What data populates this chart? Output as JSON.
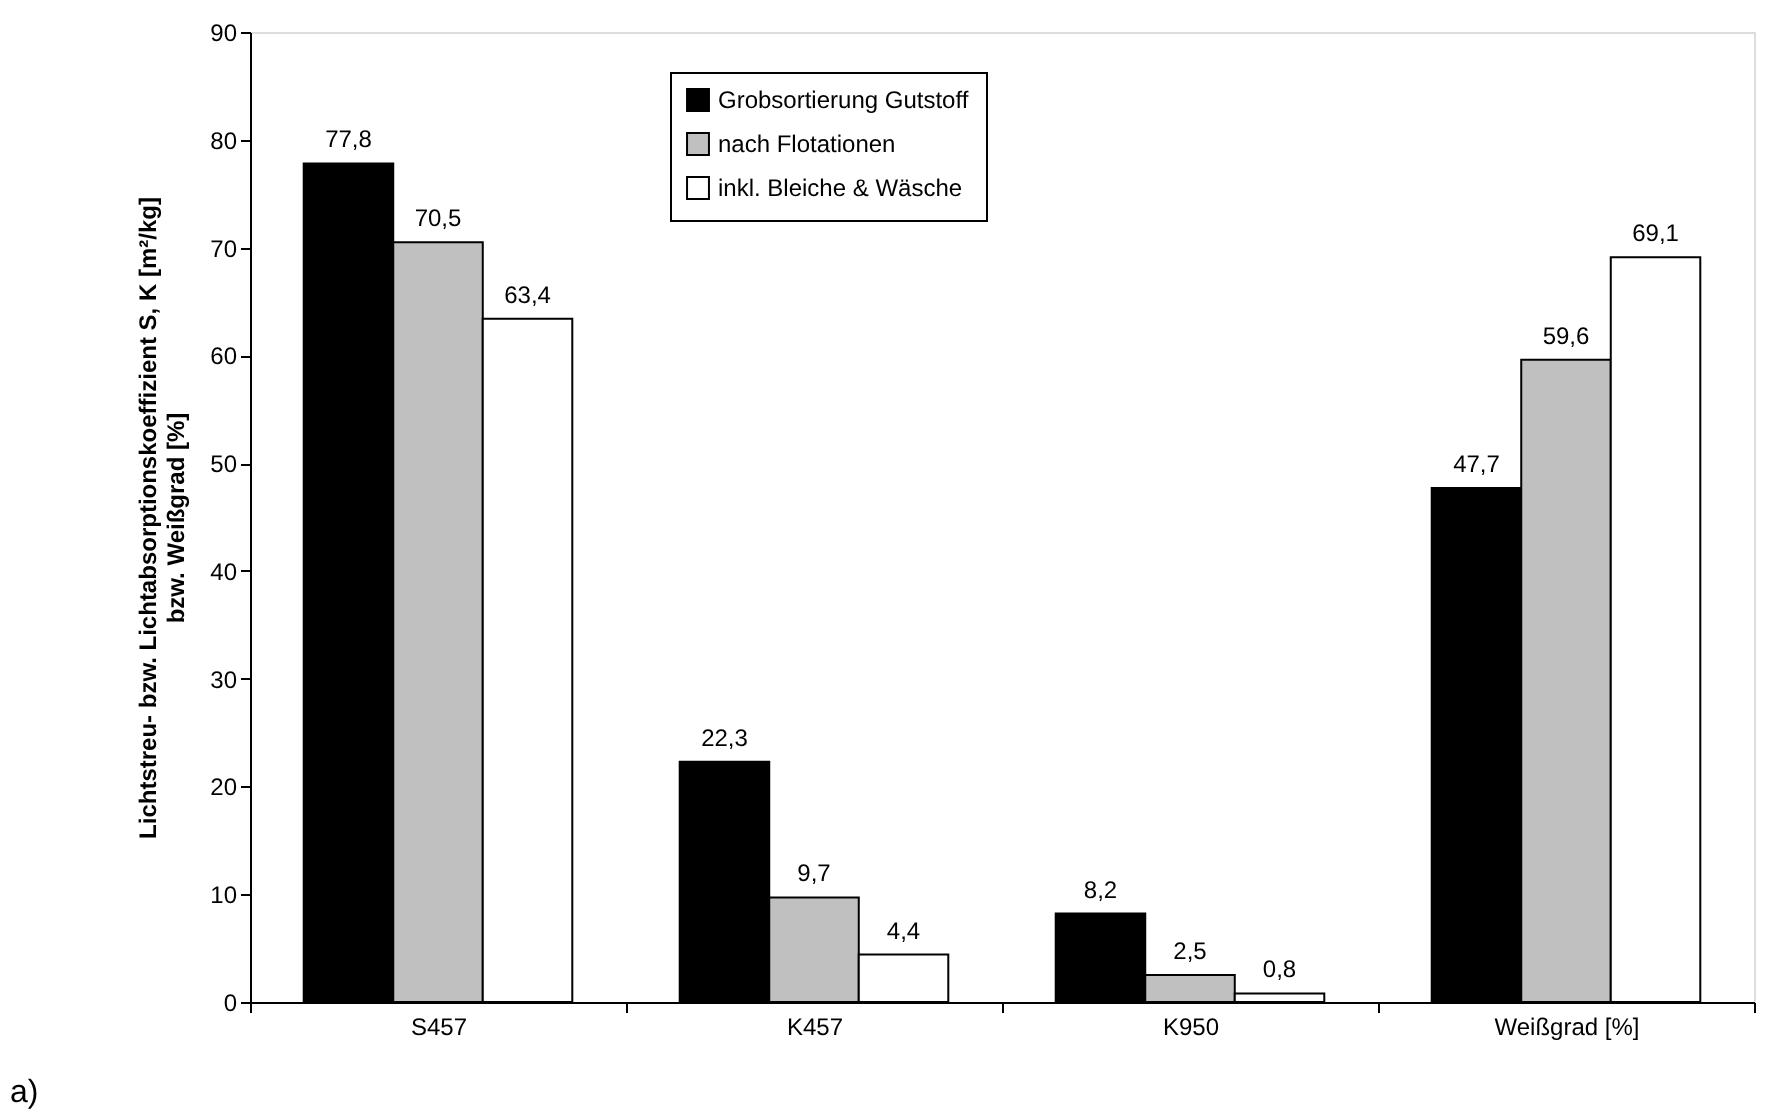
{
  "chart_data": {
    "type": "bar",
    "ylabel": "Lichtstreu- bzw. Lichtabsorptionskoeffizient S, K [m²/kg]\nbzw. Weißgrad [%]",
    "categories": [
      "S457",
      "K457",
      "K950",
      "Weißgrad [%]"
    ],
    "series": [
      {
        "name": "Grobsortierung Gutstoff",
        "color": "#000000",
        "values": [
          77.8,
          22.3,
          8.2,
          47.7
        ],
        "value_labels": [
          "77,8",
          "22,3",
          "8,2",
          "47,7"
        ]
      },
      {
        "name": "nach Flotationen",
        "color": "#c0c0c0",
        "values": [
          70.5,
          9.7,
          2.5,
          59.6
        ],
        "value_labels": [
          "70,5",
          "9,7",
          "2,5",
          "59,6"
        ]
      },
      {
        "name": "inkl. Bleiche & Wäsche",
        "color": "#ffffff",
        "values": [
          63.4,
          4.4,
          0.8,
          69.1
        ],
        "value_labels": [
          "63,4",
          "4,4",
          "0,8",
          "69,1"
        ]
      }
    ],
    "ylim": [
      0,
      90
    ],
    "yticks": [
      0,
      10,
      20,
      30,
      40,
      50,
      60,
      70,
      80,
      90
    ],
    "grid": false,
    "legend": "top",
    "annotations": [
      "a)"
    ]
  }
}
